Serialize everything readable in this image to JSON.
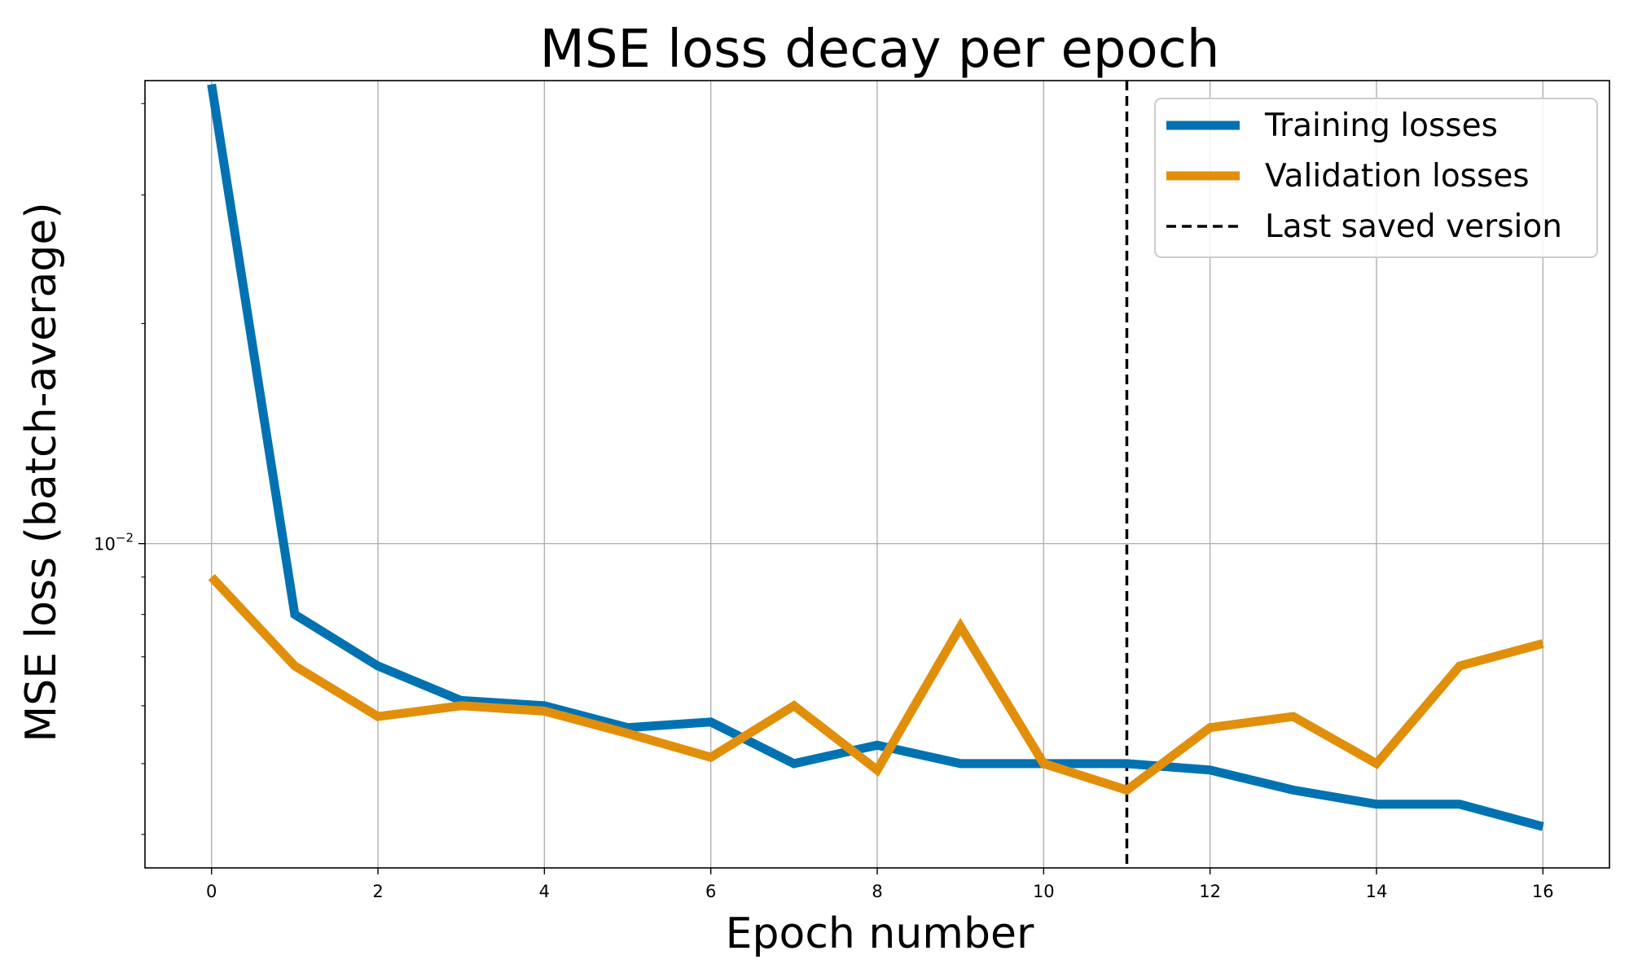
{
  "chart_data": {
    "type": "line",
    "title": "MSE loss decay per epoch",
    "xlabel": "Epoch number",
    "ylabel": "MSE loss (batch-average)",
    "xlim": [
      -0.8,
      16.8
    ],
    "ylim": [
      0.0036,
      0.043
    ],
    "y_scale": "log",
    "grid": true,
    "legend_position": "top-right",
    "x_ticks": [
      0,
      2,
      4,
      6,
      8,
      10,
      12,
      14,
      16
    ],
    "y_ticks": [
      {
        "value": 0.01,
        "base": "10",
        "exponent": "−2"
      }
    ],
    "series": [
      {
        "name": "Training losses",
        "color": "#0072b2",
        "x": [
          0,
          1,
          2,
          3,
          4,
          5,
          6,
          7,
          8,
          9,
          10,
          11,
          12,
          13,
          14,
          15,
          16
        ],
        "values": [
          0.0425,
          0.008,
          0.0068,
          0.0061,
          0.006,
          0.0056,
          0.0057,
          0.005,
          0.0053,
          0.005,
          0.005,
          0.005,
          0.0049,
          0.0046,
          0.0044,
          0.0044,
          0.0041
        ]
      },
      {
        "name": "Validation losses",
        "color": "#e18f0b",
        "x": [
          0,
          1,
          2,
          3,
          4,
          5,
          6,
          7,
          8,
          9,
          10,
          11,
          12,
          13,
          14,
          15,
          16
        ],
        "values": [
          0.009,
          0.0068,
          0.0058,
          0.006,
          0.0059,
          0.0055,
          0.0051,
          0.006,
          0.0049,
          0.0077,
          0.005,
          0.0046,
          0.0056,
          0.0058,
          0.005,
          0.0068,
          0.0073
        ]
      }
    ],
    "vlines": [
      {
        "name": "Last saved version",
        "x": 11,
        "color": "#000000",
        "style": "dashed"
      }
    ]
  }
}
